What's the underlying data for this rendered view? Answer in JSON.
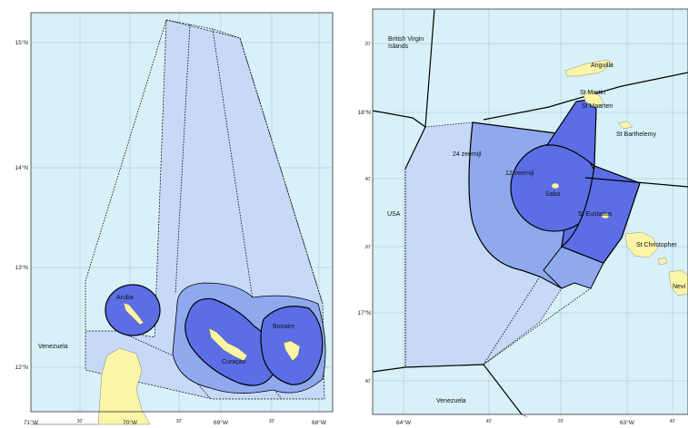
{
  "colors": {
    "sea": "#d8f0f8",
    "land": "#fbf5a8",
    "zone_24nm": "#c6d9f7",
    "zone_12nm_mid": "#8fa9ee",
    "territorial_sea": "#5b6ee6",
    "boundary": "#000000"
  },
  "left_map": {
    "lat_labels": [
      "15°N",
      "14°N",
      "13°N",
      "12°N"
    ],
    "lon_labels": [
      "71°W",
      "30'",
      "70°W",
      "30'",
      "69°W",
      "30'",
      "68°W"
    ],
    "places": {
      "venezuela": "Venezuela",
      "aruba": "Aruba",
      "curacao": "Curaçao",
      "bonaire": "Bonaire"
    }
  },
  "right_map": {
    "lat_labels": [
      "20'",
      "18°N",
      "40'",
      "20'",
      "17°N",
      "40'"
    ],
    "lon_labels": [
      "64°W",
      "40'",
      "20'",
      "63°W",
      "40'"
    ],
    "places": {
      "bvi_line1": "British Virgin",
      "bvi_line2": "Islands",
      "anguilla": "Anguilla",
      "st_martin": "St Martin",
      "st_maarten": "St Maarten",
      "st_barthelemy": "St Barthelemy",
      "zone24": "24 zeemijl",
      "zone12": "12 zeemijl",
      "saba": "Saba",
      "st_eustatius": "St Eustatius",
      "usa": "USA",
      "st_christopher": "St Christopher",
      "nevis": "Nevi",
      "venezuela": "Venezuela"
    }
  }
}
